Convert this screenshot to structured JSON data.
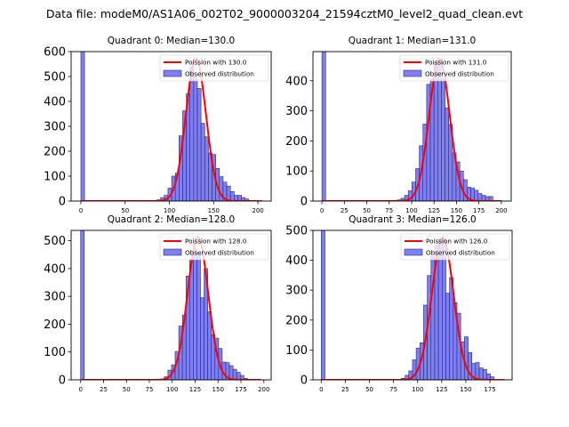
{
  "chart_data": {
    "type": "bar",
    "title": "Data file: modeM0/AS1A06_002T02_9000003204_21594cztM0_level2_quad_clean.evt",
    "panels": [
      {
        "title": "Quadrant 0: Median=130.0",
        "legend": {
          "poisson": "Poission with 130.0",
          "observed": "Observed distribution",
          "placement": "top-right"
        },
        "median": 130.0,
        "poisson_peak": 572,
        "poisson_end": 205,
        "xlim": [
          -11,
          215
        ],
        "ylim": [
          0,
          600
        ],
        "xticks": [
          0,
          50,
          100,
          150,
          200
        ],
        "yticks": [
          0,
          100,
          200,
          300,
          400,
          500,
          600
        ],
        "zero_bin": {
          "x": 2,
          "count": 600
        },
        "bin_start": 88.05,
        "bin_width": 4.15,
        "counts": [
          5,
          14,
          23,
          52,
          100,
          112,
          262,
          362,
          431,
          540,
          498,
          452,
          312,
          258,
          193,
          187,
          131,
          98,
          76,
          60,
          38,
          23,
          23,
          14,
          8
        ]
      },
      {
        "title": "Quadrant 1: Median=131.0",
        "legend": {
          "poisson": "Poission with 131.0",
          "observed": "Observed distribution",
          "placement": "top-right"
        },
        "median": 131.0,
        "poisson_peak": 473,
        "poisson_end": 200,
        "xlim": [
          -10,
          211
        ],
        "ylim": [
          0,
          497
        ],
        "xticks": [
          0,
          25,
          50,
          75,
          100,
          125,
          150,
          175,
          200
        ],
        "yticks": [
          0,
          100,
          200,
          300,
          400
        ],
        "zero_bin": {
          "x": 2,
          "count": 497
        },
        "bin_start": 86,
        "bin_width": 4.1,
        "counts": [
          4,
          9,
          19,
          34,
          63,
          108,
          184,
          256,
          388,
          406,
          460,
          470,
          405,
          310,
          255,
          160,
          130,
          100,
          71,
          46,
          43,
          36,
          25,
          19,
          15,
          15
        ]
      },
      {
        "title": "Quadrant 2: Median=128.0",
        "legend": {
          "poisson": "Poission with 128.0",
          "observed": "Observed distribution",
          "placement": "top-right"
        },
        "median": 128.0,
        "poisson_peak": 512,
        "poisson_end": 197,
        "xlim": [
          -10.4,
          208
        ],
        "ylim": [
          0,
          537
        ],
        "xticks": [
          0,
          25,
          50,
          75,
          100,
          125,
          150,
          175,
          200
        ],
        "yticks": [
          0,
          100,
          200,
          300,
          400,
          500
        ],
        "zero_bin": {
          "x": 2,
          "count": 537
        },
        "bin_start": 93.3,
        "bin_width": 3.95,
        "counts": [
          11,
          35,
          54,
          102,
          193,
          233,
          373,
          429,
          470,
          455,
          295,
          400,
          245,
          163,
          150,
          113,
          64,
          62,
          51,
          38,
          27,
          16,
          5
        ]
      },
      {
        "title": "Quadrant 3: Median=126.0",
        "legend": {
          "poisson": "Poission with 126.0",
          "observed": "Observed distribution",
          "placement": "top-right"
        },
        "median": 126.0,
        "poisson_peak": 476,
        "poisson_end": 190,
        "xlim": [
          -8.6,
          198
        ],
        "ylim": [
          0,
          500
        ],
        "xticks": [
          0,
          25,
          50,
          75,
          100,
          125,
          150,
          175
        ],
        "yticks": [
          0,
          100,
          200,
          300,
          400,
          500
        ],
        "zero_bin": {
          "x": 2,
          "count": 500
        },
        "bin_start": 85,
        "bin_width": 3.85,
        "counts": [
          5,
          15,
          30,
          67,
          106,
          124,
          250,
          349,
          412,
          451,
          474,
          470,
          290,
          342,
          258,
          223,
          127,
          144,
          91,
          55,
          58,
          40,
          35,
          20,
          10
        ]
      }
    ],
    "colors": {
      "bar_fill": "#7f7ff5",
      "bar_edge": "#2a2a6a",
      "poisson": "#ff0000"
    }
  }
}
